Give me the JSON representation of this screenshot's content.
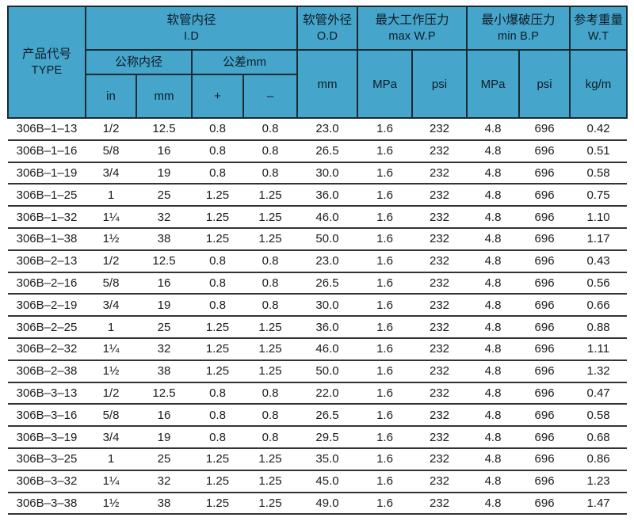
{
  "colors": {
    "header_bg": "#46a5ca",
    "border_dark": "#1b2a33",
    "row_line": "#333333",
    "text_dark": "#1b1b1b",
    "header_text": "#0c1c26"
  },
  "table": {
    "header": {
      "type": [
        "产品代号",
        "TYPE"
      ],
      "id_group": [
        "软管内径",
        "I.D"
      ],
      "nominal_id": "公称内径",
      "tolerance": "公差mm",
      "col_in": "in",
      "col_mm": "mm",
      "col_plus": "+",
      "col_minus": "–",
      "od_group": [
        "软管外径",
        "O.D"
      ],
      "od_unit": "mm",
      "wp_group": [
        "最大工作压力",
        "max W.P"
      ],
      "wp_mpa": "MPa",
      "wp_psi": "psi",
      "bp_group": [
        "最小爆破压力",
        "min B.P"
      ],
      "bp_mpa": "MPa",
      "bp_psi": "psi",
      "wt_group": [
        "参考重量",
        "W.T"
      ],
      "wt_unit": "kg/m"
    },
    "column_keys": [
      "type",
      "id-in",
      "id-mm",
      "tol-plus",
      "tol-minus",
      "od-mm",
      "wp-mpa",
      "wp-psi",
      "bp-mpa",
      "bp-psi",
      "wt-kgm"
    ],
    "rows": [
      [
        "306B–1–13",
        "1/2",
        "12.5",
        "0.8",
        "0.8",
        "23.0",
        "1.6",
        "232",
        "4.8",
        "696",
        "0.42"
      ],
      [
        "306B–1–16",
        "5/8",
        "16",
        "0.8",
        "0.8",
        "26.5",
        "1.6",
        "232",
        "4.8",
        "696",
        "0.51"
      ],
      [
        "306B–1–19",
        "3/4",
        "19",
        "0.8",
        "0.8",
        "30.0",
        "1.6",
        "232",
        "4.8",
        "696",
        "0.58"
      ],
      [
        "306B–1–25",
        "1",
        "25",
        "1.25",
        "1.25",
        "36.0",
        "1.6",
        "232",
        "4.8",
        "696",
        "0.75"
      ],
      [
        "306B–1–32",
        "1¼",
        "32",
        "1.25",
        "1.25",
        "46.0",
        "1.6",
        "232",
        "4.8",
        "696",
        "1.10"
      ],
      [
        "306B–1–38",
        "1½",
        "38",
        "1.25",
        "1.25",
        "50.0",
        "1.6",
        "232",
        "4.8",
        "696",
        "1.17"
      ],
      [
        "306B–2–13",
        "1/2",
        "12.5",
        "0.8",
        "0.8",
        "23.0",
        "1.6",
        "232",
        "4.8",
        "696",
        "0.43"
      ],
      [
        "306B–2–16",
        "5/8",
        "16",
        "0.8",
        "0.8",
        "26.5",
        "1.6",
        "232",
        "4.8",
        "696",
        "0.56"
      ],
      [
        "306B–2–19",
        "3/4",
        "19",
        "0.8",
        "0.8",
        "30.0",
        "1.6",
        "232",
        "4.8",
        "696",
        "0.66"
      ],
      [
        "306B–2–25",
        "1",
        "25",
        "1.25",
        "1.25",
        "36.0",
        "1.6",
        "232",
        "4.8",
        "696",
        "0.88"
      ],
      [
        "306B–2–32",
        "1¼",
        "32",
        "1.25",
        "1.25",
        "46.0",
        "1.6",
        "232",
        "4.8",
        "696",
        "1.11"
      ],
      [
        "306B–2–38",
        "1½",
        "38",
        "1.25",
        "1.25",
        "50.0",
        "1.6",
        "232",
        "4.8",
        "696",
        "1.32"
      ],
      [
        "306B–3–13",
        "1/2",
        "12.5",
        "0.8",
        "0.8",
        "22.0",
        "1.6",
        "232",
        "4.8",
        "696",
        "0.47"
      ],
      [
        "306B–3–16",
        "5/8",
        "16",
        "0.8",
        "0.8",
        "26.5",
        "1.6",
        "232",
        "4.8",
        "696",
        "0.58"
      ],
      [
        "306B–3–19",
        "3/4",
        "19",
        "0.8",
        "0.8",
        "29.5",
        "1.6",
        "232",
        "4.8",
        "696",
        "0.68"
      ],
      [
        "306B–3–25",
        "1",
        "25",
        "1.25",
        "1.25",
        "35.0",
        "1.6",
        "232",
        "4.8",
        "696",
        "0.86"
      ],
      [
        "306B–3–32",
        "1¼",
        "32",
        "1.25",
        "1.25",
        "45.0",
        "1.6",
        "232",
        "4.8",
        "696",
        "1.23"
      ],
      [
        "306B–3–38",
        "1½",
        "38",
        "1.25",
        "1.25",
        "49.0",
        "1.6",
        "232",
        "4.8",
        "696",
        "1.47"
      ]
    ]
  }
}
